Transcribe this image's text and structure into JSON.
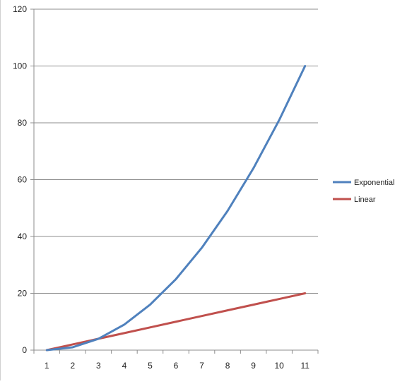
{
  "chart_data": {
    "type": "line",
    "categories": [
      "1",
      "2",
      "3",
      "4",
      "5",
      "6",
      "7",
      "8",
      "9",
      "10",
      "11"
    ],
    "series": [
      {
        "name": "Exponential",
        "color": "#4f81bd",
        "values": [
          0,
          1,
          4,
          9,
          16,
          25,
          36,
          49,
          64,
          81,
          100
        ]
      },
      {
        "name": "Linear",
        "color": "#c0504d",
        "values": [
          0,
          2,
          4,
          6,
          8,
          10,
          12,
          14,
          16,
          18,
          20
        ]
      }
    ],
    "yticks": [
      "0",
      "20",
      "40",
      "60",
      "80",
      "100",
      "120"
    ],
    "ylim": [
      0,
      120
    ],
    "grid": true,
    "legend_position": "right"
  }
}
